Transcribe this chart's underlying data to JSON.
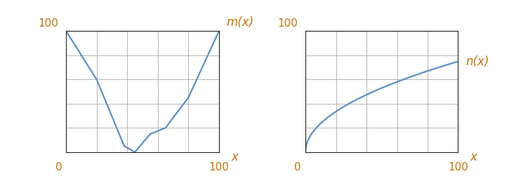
{
  "m_x": [
    0,
    20,
    40,
    60,
    80,
    100
  ],
  "m_y": [
    100,
    60,
    0,
    20,
    40,
    100
  ],
  "line_color": "#5b8fc9",
  "label_color": "#c8720a",
  "axis_color": "#222222",
  "grid_color": "#aaaaaa",
  "bg_color": "#ffffff",
  "xlim": [
    0,
    100
  ],
  "ylim": [
    0,
    100
  ],
  "m_label": "m(x)",
  "n_label": "n(x)",
  "x_label": "x",
  "label_fontsize": 12,
  "tick_fontsize": 11,
  "line_width": 1.6,
  "n_power": 0.5,
  "n_scale": 75
}
